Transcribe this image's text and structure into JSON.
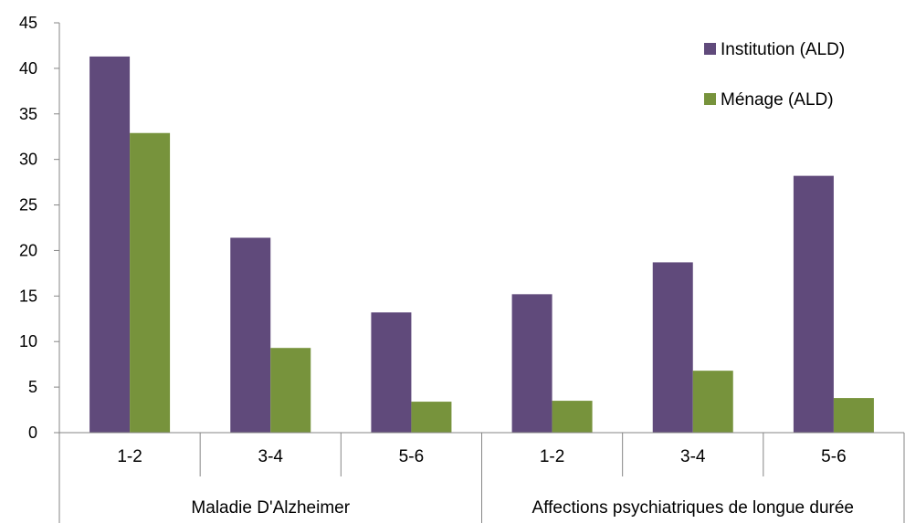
{
  "chart_data": {
    "type": "bar",
    "title": "",
    "xlabel": "",
    "ylabel": "",
    "ylim": [
      0,
      45
    ],
    "yticks": [
      0,
      5,
      10,
      15,
      20,
      25,
      30,
      35,
      40,
      45
    ],
    "grid": false,
    "legend_position": "top-right",
    "groups": [
      {
        "label": "Maladie D'Alzheimer",
        "categories": [
          "1-2",
          "3-4",
          "5-6"
        ]
      },
      {
        "label": "Affections psychiatriques de longue durée",
        "categories": [
          "1-2",
          "3-4",
          "5-6"
        ]
      }
    ],
    "categories": [
      "1-2",
      "3-4",
      "5-6",
      "1-2",
      "3-4",
      "5-6"
    ],
    "series": [
      {
        "name": "Institution (ALD)",
        "color": "#604a7b",
        "values": [
          41.3,
          21.4,
          13.2,
          15.2,
          18.7,
          28.2
        ]
      },
      {
        "name": "Ménage (ALD)",
        "color": "#77933c",
        "values": [
          32.9,
          9.3,
          3.4,
          3.5,
          6.8,
          3.8
        ]
      }
    ]
  }
}
